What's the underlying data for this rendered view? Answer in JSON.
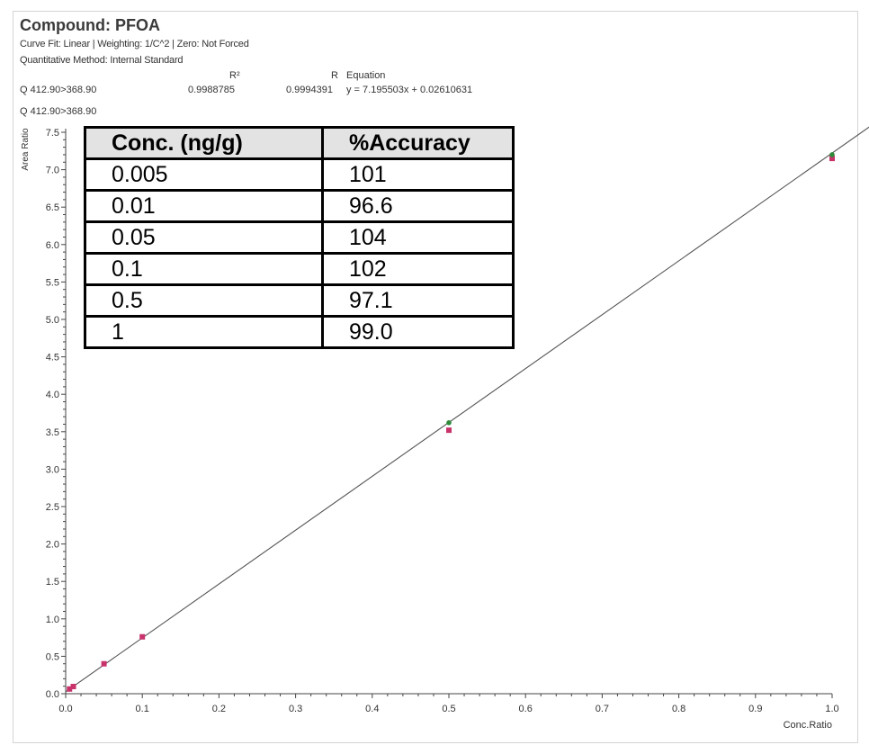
{
  "header": {
    "title": "Compound: PFOA",
    "curve_fit": "Curve Fit: Linear | Weighting: 1/C^2 | Zero: Not Forced",
    "quant_method": "Quantitative Method: Internal Standard",
    "col_r2": "R²",
    "col_r": "R",
    "col_equation": "Equation",
    "transition": "Q 412.90>368.90",
    "r2_value": "0.9988785",
    "r_value": "0.9994391",
    "equation": "y = 7.195503x + 0.02610631",
    "plot_label": "Q 412.90>368.90"
  },
  "accuracy_table": {
    "headers": [
      "Conc. (ng/g)",
      "%Accuracy"
    ],
    "rows": [
      [
        "0.005",
        "101"
      ],
      [
        "0.01",
        "96.6"
      ],
      [
        "0.05",
        "104"
      ],
      [
        "0.1",
        "102"
      ],
      [
        "0.5",
        "97.1"
      ],
      [
        "1",
        "99.0"
      ]
    ]
  },
  "chart_data": {
    "type": "scatter",
    "xlabel": "Conc.Ratio",
    "ylabel": "Area Ratio",
    "xlim": [
      0,
      1.0
    ],
    "ylim": [
      0,
      7.5
    ],
    "xticks": [
      "0.0",
      "0.1",
      "0.2",
      "0.3",
      "0.4",
      "0.5",
      "0.6",
      "0.7",
      "0.8",
      "0.9",
      "1.0"
    ],
    "yticks": [
      "0.0",
      "0.5",
      "1.0",
      "1.5",
      "2.0",
      "2.5",
      "3.0",
      "3.5",
      "4.0",
      "4.5",
      "5.0",
      "5.5",
      "6.0",
      "6.5",
      "7.0",
      "7.5"
    ],
    "fit_line": {
      "slope": 7.195503,
      "intercept": 0.02610631,
      "x_range": [
        0,
        1.05
      ]
    },
    "series": [
      {
        "color": "#c8336b",
        "marker": "square",
        "x": [
          0.005,
          0.01,
          0.05,
          0.1,
          0.5,
          1.0
        ],
        "y": [
          0.063,
          0.096,
          0.4,
          0.76,
          3.52,
          7.15
        ]
      },
      {
        "color": "#2e8b3a",
        "marker": "circle",
        "x": [
          0.5,
          1.0
        ],
        "y": [
          3.62,
          7.2
        ]
      }
    ],
    "grid": false,
    "line_color": "#555555"
  }
}
